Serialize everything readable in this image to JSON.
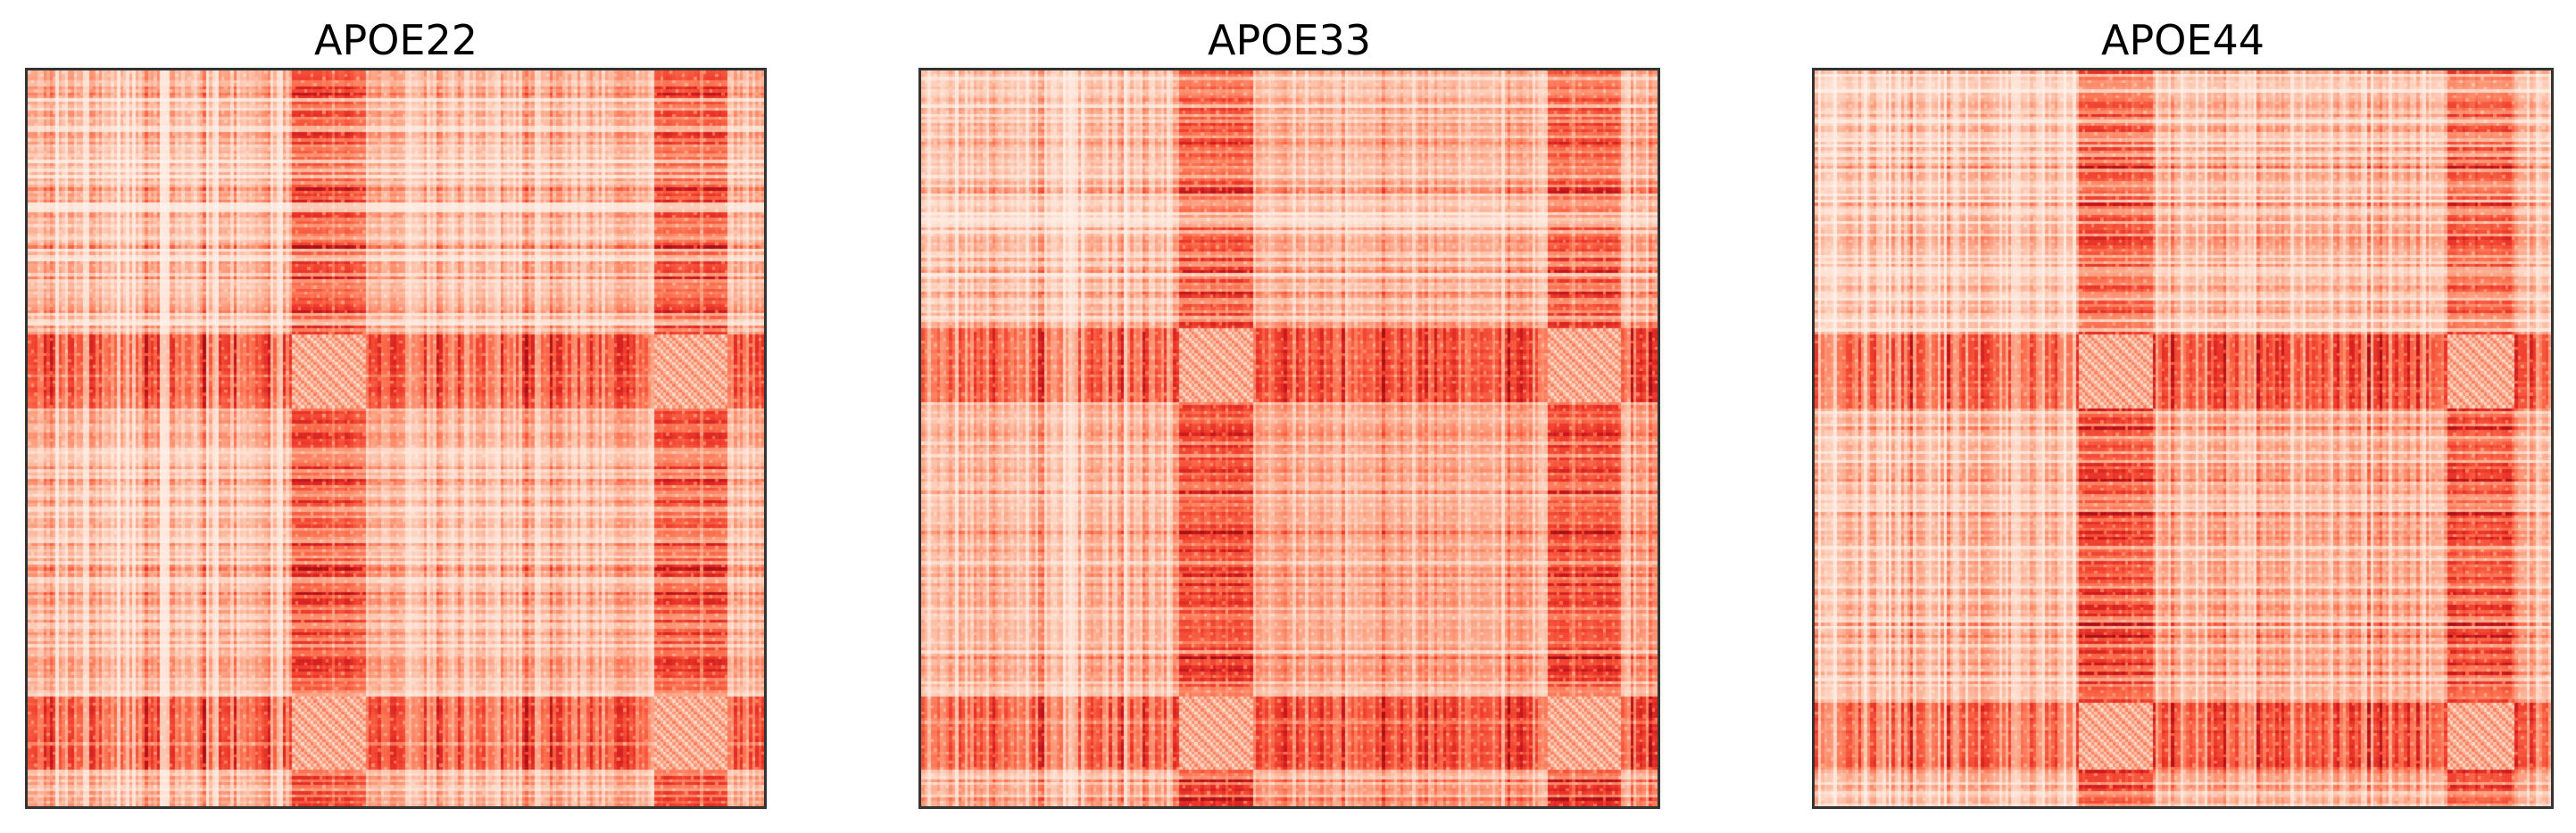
{
  "chart_data": [
    {
      "type": "heatmap",
      "title": "APOE22",
      "colormap": "Reds",
      "grid": false,
      "xticks": [],
      "yticks": [],
      "band_edges": [
        0,
        0.36,
        0.46,
        0.85,
        0.95,
        1.0
      ],
      "band_weights": [
        0.25,
        0.95,
        0.3,
        0.95,
        0.35
      ],
      "hot_band_weight": 0.95
    },
    {
      "type": "heatmap",
      "title": "APOE33",
      "colormap": "Reds",
      "grid": false,
      "xticks": [],
      "yticks": [],
      "band_edges": [
        0,
        0.35,
        0.45,
        0.85,
        0.95,
        1.0
      ],
      "band_weights": [
        0.25,
        0.95,
        0.3,
        0.95,
        0.35
      ],
      "hot_band_weight": 0.95
    },
    {
      "type": "heatmap",
      "title": "APOE44",
      "colormap": "Reds",
      "grid": false,
      "xticks": [],
      "yticks": [],
      "band_edges": [
        0,
        0.36,
        0.46,
        0.86,
        0.95,
        1.0
      ],
      "band_weights": [
        0.25,
        0.95,
        0.3,
        0.95,
        0.35
      ],
      "hot_band_weight": 0.95
    }
  ]
}
